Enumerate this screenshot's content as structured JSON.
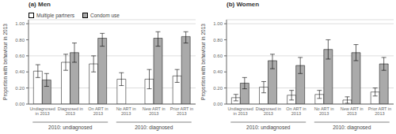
{
  "chart_data": [
    {
      "type": "bar",
      "title": "(a) Men",
      "ylabel": "Proportion with behaviour in 2013",
      "categories": [
        "Undiagnosed\nin 2013",
        "Diagnosed in\n2013",
        "On ART in\n2013",
        "No ART in\n2013",
        "New ART in\n2013",
        "Prior ART in\n2013"
      ],
      "series": [
        {
          "name": "Multiple partners",
          "color": "#ffffff",
          "values": [
            0.41,
            0.52,
            0.5,
            0.31,
            0.31,
            0.35
          ],
          "error_low": [
            0.08,
            0.1,
            0.1,
            0.08,
            0.12,
            0.08
          ],
          "error_high": [
            0.08,
            0.1,
            0.1,
            0.08,
            0.12,
            0.08
          ]
        },
        {
          "name": "Condom use",
          "color": "#aaaaaa",
          "values": [
            0.3,
            0.64,
            0.82,
            0.0,
            0.82,
            0.84
          ],
          "error_low": [
            0.08,
            0.12,
            0.1,
            0.0,
            0.1,
            0.08
          ],
          "error_high": [
            0.08,
            0.12,
            0.06,
            0.0,
            0.08,
            0.06
          ]
        }
      ],
      "annotations": [
        "2010: undiagnosed",
        "2010: diagnosed"
      ],
      "ylim": [
        0,
        1.05
      ],
      "yticks": [
        {
          "value": 0,
          "label": "0.00"
        },
        {
          "value": 0.2,
          "label": "0.20"
        },
        {
          "value": 0.4,
          "label": "0.40"
        },
        {
          "value": 0.6,
          "label": "0.60"
        },
        {
          "value": 0.8,
          "label": "0.80"
        },
        {
          "value": 1.0,
          "label": "1.00"
        }
      ],
      "grid": true,
      "legend": "upper left"
    },
    {
      "type": "bar",
      "title": "(b) Women",
      "ylabel": "Proportion with behaviour in 2013",
      "categories": [
        "Undiagnosed\nin 2013",
        "Diagnosed in\n2013",
        "On ART in\n2013",
        "No ART in\n2013",
        "New ART in\n2013",
        "Prior ART in\n2013"
      ],
      "series": [
        {
          "name": "Multiple partners",
          "color": "#ffffff",
          "values": [
            0.08,
            0.21,
            0.11,
            0.12,
            0.05,
            0.15
          ],
          "error_low": [
            0.04,
            0.07,
            0.06,
            0.05,
            0.04,
            0.05
          ],
          "error_high": [
            0.04,
            0.07,
            0.06,
            0.05,
            0.04,
            0.05
          ]
        },
        {
          "name": "Condom use",
          "color": "#aaaaaa",
          "values": [
            0.26,
            0.54,
            0.48,
            0.68,
            0.64,
            0.5
          ],
          "error_low": [
            0.07,
            0.1,
            0.1,
            0.12,
            0.1,
            0.08
          ],
          "error_high": [
            0.07,
            0.08,
            0.1,
            0.12,
            0.1,
            0.08
          ]
        }
      ],
      "annotations": [
        "2010: undiagnosed",
        "2010: diagnosed"
      ],
      "ylim": [
        0,
        1.05
      ],
      "yticks": [
        {
          "value": 0,
          "label": "0.00"
        },
        {
          "value": 0.2,
          "label": "0.20"
        },
        {
          "value": 0.4,
          "label": "0.40"
        },
        {
          "value": 0.6,
          "label": "0.60"
        },
        {
          "value": 0.8,
          "label": "0.80"
        },
        {
          "value": 1.0,
          "label": "1.00"
        }
      ],
      "grid": true
    }
  ]
}
